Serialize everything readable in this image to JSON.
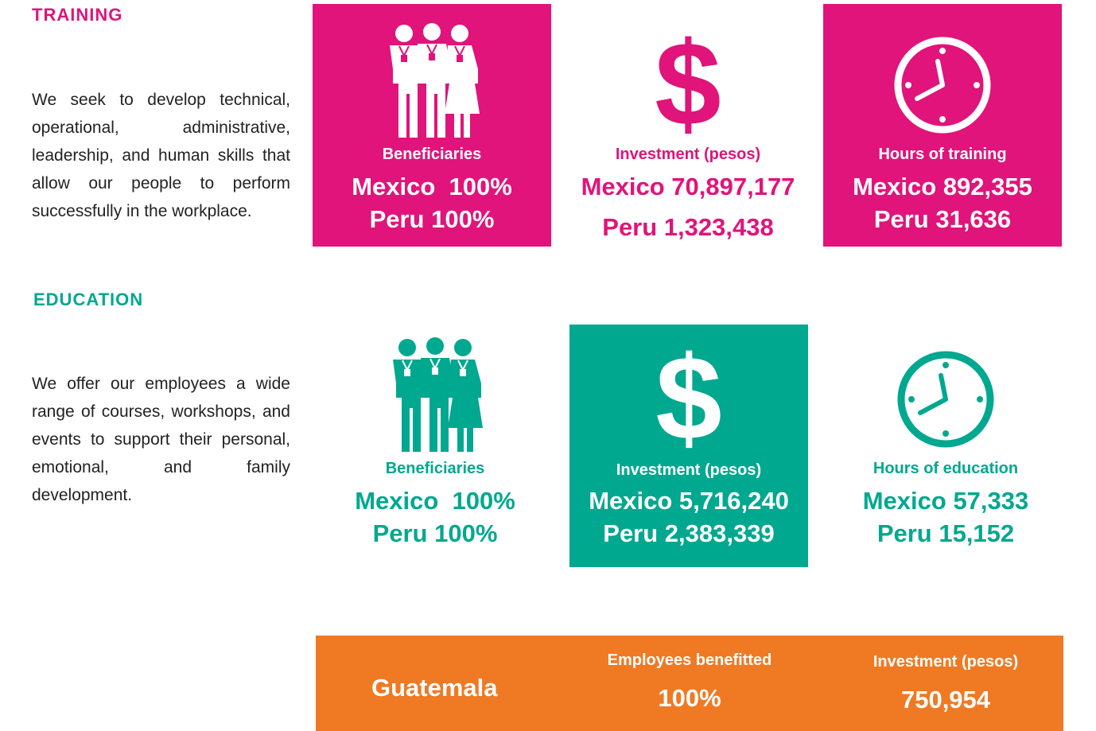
{
  "training": {
    "heading": "TRAINING",
    "description": "We seek to develop technical, operational, administrative, leadership, and human skills that allow our people to perform successfully in the workplace.",
    "beneficiaries": {
      "label": "Beneficiaries",
      "line1": "Mexico  100%",
      "line2": "Peru 100%",
      "icon": "people-icon"
    },
    "investment": {
      "label": "Investment (pesos)",
      "line1": "Mexico 70,897,177",
      "line2": "Peru 1,323,438",
      "icon": "dollar-icon"
    },
    "hours": {
      "label": "Hours of training",
      "line1": "Mexico 892,355",
      "line2": "Peru 31,636",
      "icon": "clock-icon"
    }
  },
  "education": {
    "heading": "EDUCATION",
    "description": "We offer our employees a wide range of courses, workshops, and events to support their personal, emotional, and family development.",
    "beneficiaries": {
      "label": "Beneficiaries",
      "line1": "Mexico  100%",
      "line2": "Peru 100%",
      "icon": "people-icon"
    },
    "investment": {
      "label": "Investment (pesos)",
      "line1": "Mexico 5,716,240",
      "line2": "Peru 2,383,339",
      "icon": "dollar-icon"
    },
    "hours": {
      "label": "Hours of education",
      "line1": "Mexico 57,333",
      "line2": "Peru 15,152",
      "icon": "clock-icon"
    }
  },
  "guatemala": {
    "country": "Guatemala",
    "employees_label": "Employees benefitted",
    "employees_value": "100%",
    "investment_label": "Investment (pesos)",
    "investment_value": "750,954"
  },
  "colors": {
    "pink": "#E0147A",
    "teal": "#00A88F",
    "orange": "#EF7A23"
  }
}
